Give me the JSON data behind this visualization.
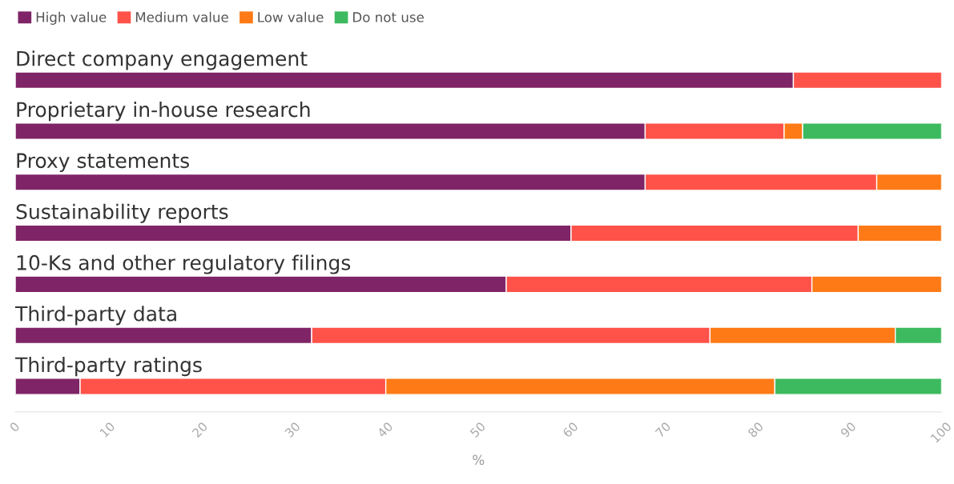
{
  "chart_data": {
    "type": "bar",
    "orientation": "horizontal",
    "stacked": true,
    "categories": [
      "Direct company engagement",
      "Proprietary in-house research",
      "Proxy statements",
      "Sustainability reports",
      "10-Ks and other regulatory filings",
      "Third-party data",
      "Third-party ratings"
    ],
    "series": [
      {
        "name": "High value",
        "color": "#7f2466",
        "values": [
          84,
          68,
          68,
          60,
          53,
          32,
          7
        ]
      },
      {
        "name": "Medium value",
        "color": "#ff5249",
        "values": [
          16,
          15,
          25,
          31,
          33,
          43,
          33
        ]
      },
      {
        "name": "Low value",
        "color": "#fd7a16",
        "values": [
          null,
          2,
          7,
          9,
          14,
          20,
          42
        ]
      },
      {
        "name": "Do not use",
        "color": "#3dba5f",
        "values": [
          null,
          15,
          null,
          null,
          null,
          5,
          18
        ]
      }
    ],
    "xlim": [
      0,
      100
    ],
    "xticks": [
      0,
      10,
      20,
      30,
      40,
      50,
      60,
      70,
      80,
      90,
      100
    ],
    "xlabel": "%",
    "legend": "top left",
    "grid": false
  }
}
